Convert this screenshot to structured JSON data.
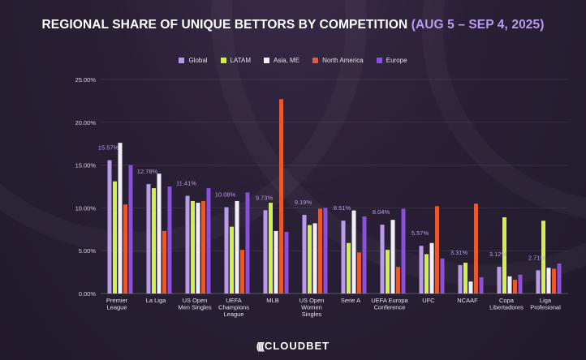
{
  "header": {
    "title_main": "REGIONAL SHARE OF UNIQUE BETTORS BY COMPETITION ",
    "title_dates": "(AUG 5 – SEP 4, 2025)"
  },
  "legend": [
    {
      "name": "Global",
      "color": "#b89ce8"
    },
    {
      "name": "LATAM",
      "color": "#d2f04a"
    },
    {
      "name": "Asia, ME",
      "color": "#f2eef6"
    },
    {
      "name": "North America",
      "color": "#e8592e"
    },
    {
      "name": "Europe",
      "color": "#8a4fdc"
    }
  ],
  "chart_data": {
    "type": "bar",
    "title": "REGIONAL SHARE OF UNIQUE BETTORS BY COMPETITION (AUG 5 – SEP 4, 2025)",
    "xlabel": "",
    "ylabel": "",
    "ylim": [
      0,
      25
    ],
    "y_ticks": [
      "0.00%",
      "5.00%",
      "10.00%",
      "15.00%",
      "20.00%",
      "25.00%"
    ],
    "y_tick_values": [
      0,
      5,
      10,
      15,
      20,
      25
    ],
    "categories": [
      [
        "Premier",
        "League"
      ],
      [
        "La Liga"
      ],
      [
        "US Open",
        "Men Singles"
      ],
      [
        "UEFA",
        "Champions",
        "League"
      ],
      [
        "MLB"
      ],
      [
        "US Open",
        "Women",
        "Singles"
      ],
      [
        "Serie A"
      ],
      [
        "UEFA Europa",
        "Conference"
      ],
      [
        "UFC"
      ],
      [
        "NCAAF"
      ],
      [
        "Copa",
        "Libertadores"
      ],
      [
        "Liga",
        "Profesional"
      ]
    ],
    "global_labels": [
      "15.57%",
      "12.78%",
      "11.41%",
      "10.08%",
      "9.73%",
      "9.19%",
      "8.51%",
      "8.04%",
      "5.57%",
      "3.31%",
      "3.12%",
      "2.71%"
    ],
    "series": [
      {
        "name": "Global",
        "color": "#b89ce8",
        "values": [
          15.57,
          12.78,
          11.41,
          10.08,
          9.73,
          9.19,
          8.51,
          8.04,
          5.57,
          3.31,
          3.12,
          2.71
        ]
      },
      {
        "name": "LATAM",
        "color": "#d2f04a",
        "values": [
          13.1,
          12.3,
          10.8,
          7.8,
          10.6,
          8.0,
          5.9,
          5.1,
          4.6,
          3.6,
          8.9,
          8.5
        ]
      },
      {
        "name": "Asia, ME",
        "color": "#f2eef6",
        "values": [
          17.6,
          14.0,
          10.6,
          10.8,
          7.3,
          8.2,
          9.7,
          8.6,
          5.9,
          1.4,
          2.0,
          3.0
        ]
      },
      {
        "name": "North America",
        "color": "#e8592e",
        "values": [
          10.4,
          7.3,
          10.8,
          5.1,
          22.7,
          9.9,
          4.8,
          3.1,
          10.2,
          10.5,
          1.6,
          2.9
        ]
      },
      {
        "name": "Europe",
        "color": "#8a4fdc",
        "values": [
          15.0,
          12.5,
          12.3,
          11.8,
          7.2,
          10.0,
          9.0,
          9.9,
          4.1,
          1.9,
          2.2,
          3.5
        ]
      }
    ]
  },
  "footer": {
    "logo_mark": "((((",
    "logo_text": "CLOUDBET"
  }
}
